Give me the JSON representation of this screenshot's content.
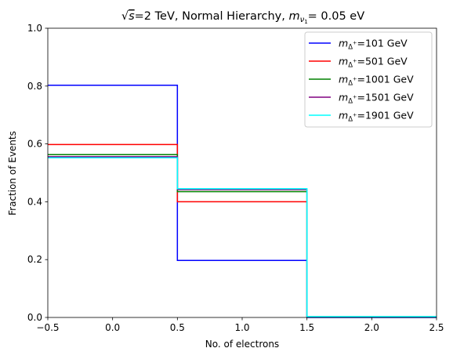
{
  "chart_data": {
    "type": "line",
    "title": "√s=2 TeV, Normal Hierarchy, m_ν1= 0.05 eV",
    "title_parts": {
      "sqrt": "√",
      "s": "s",
      "energy": "=2 TeV, Normal Hierarchy, ",
      "m": "m",
      "nu": "ν",
      "one": "1",
      "tail": "= 0.05 eV"
    },
    "xlabel": "No. of electrons",
    "ylabel": "Fraction of Events",
    "xlim": [
      -0.5,
      2.5
    ],
    "ylim": [
      0.0,
      1.0
    ],
    "xticks": [
      "−0.5",
      "0.0",
      "0.5",
      "1.0",
      "1.5",
      "2.0",
      "2.5"
    ],
    "xtick_values": [
      -0.5,
      0.0,
      0.5,
      1.0,
      1.5,
      2.0,
      2.5
    ],
    "yticks": [
      "0.0",
      "0.2",
      "0.4",
      "0.6",
      "0.8",
      "1.0"
    ],
    "ytick_values": [
      0.0,
      0.2,
      0.4,
      0.6,
      0.8,
      1.0
    ],
    "grid": false,
    "legend_position": "top-right",
    "bin_edges": [
      -0.5,
      0.5,
      1.5,
      2.5
    ],
    "series": [
      {
        "name": "m_Δ+=101 GeV",
        "mass": "=101 GeV",
        "color": "#0000ff",
        "values": [
          0.803,
          0.197,
          0.0
        ]
      },
      {
        "name": "m_Δ+=501 GeV",
        "mass": "=501 GeV",
        "color": "#ff0000",
        "values": [
          0.598,
          0.4,
          0.002
        ]
      },
      {
        "name": "m_Δ+=1001 GeV",
        "mass": "=1001 GeV",
        "color": "#008000",
        "values": [
          0.563,
          0.435,
          0.002
        ]
      },
      {
        "name": "m_Δ+=1501 GeV",
        "mass": "=1501 GeV",
        "color": "#800080",
        "values": [
          0.556,
          0.442,
          0.002
        ]
      },
      {
        "name": "m_Δ+=1901 GeV",
        "mass": "=1901 GeV",
        "color": "#00ffff",
        "values": [
          0.552,
          0.445,
          0.003
        ]
      }
    ],
    "legend_symbol": {
      "m": "m",
      "delta": "Δ",
      "plus": "+"
    }
  }
}
